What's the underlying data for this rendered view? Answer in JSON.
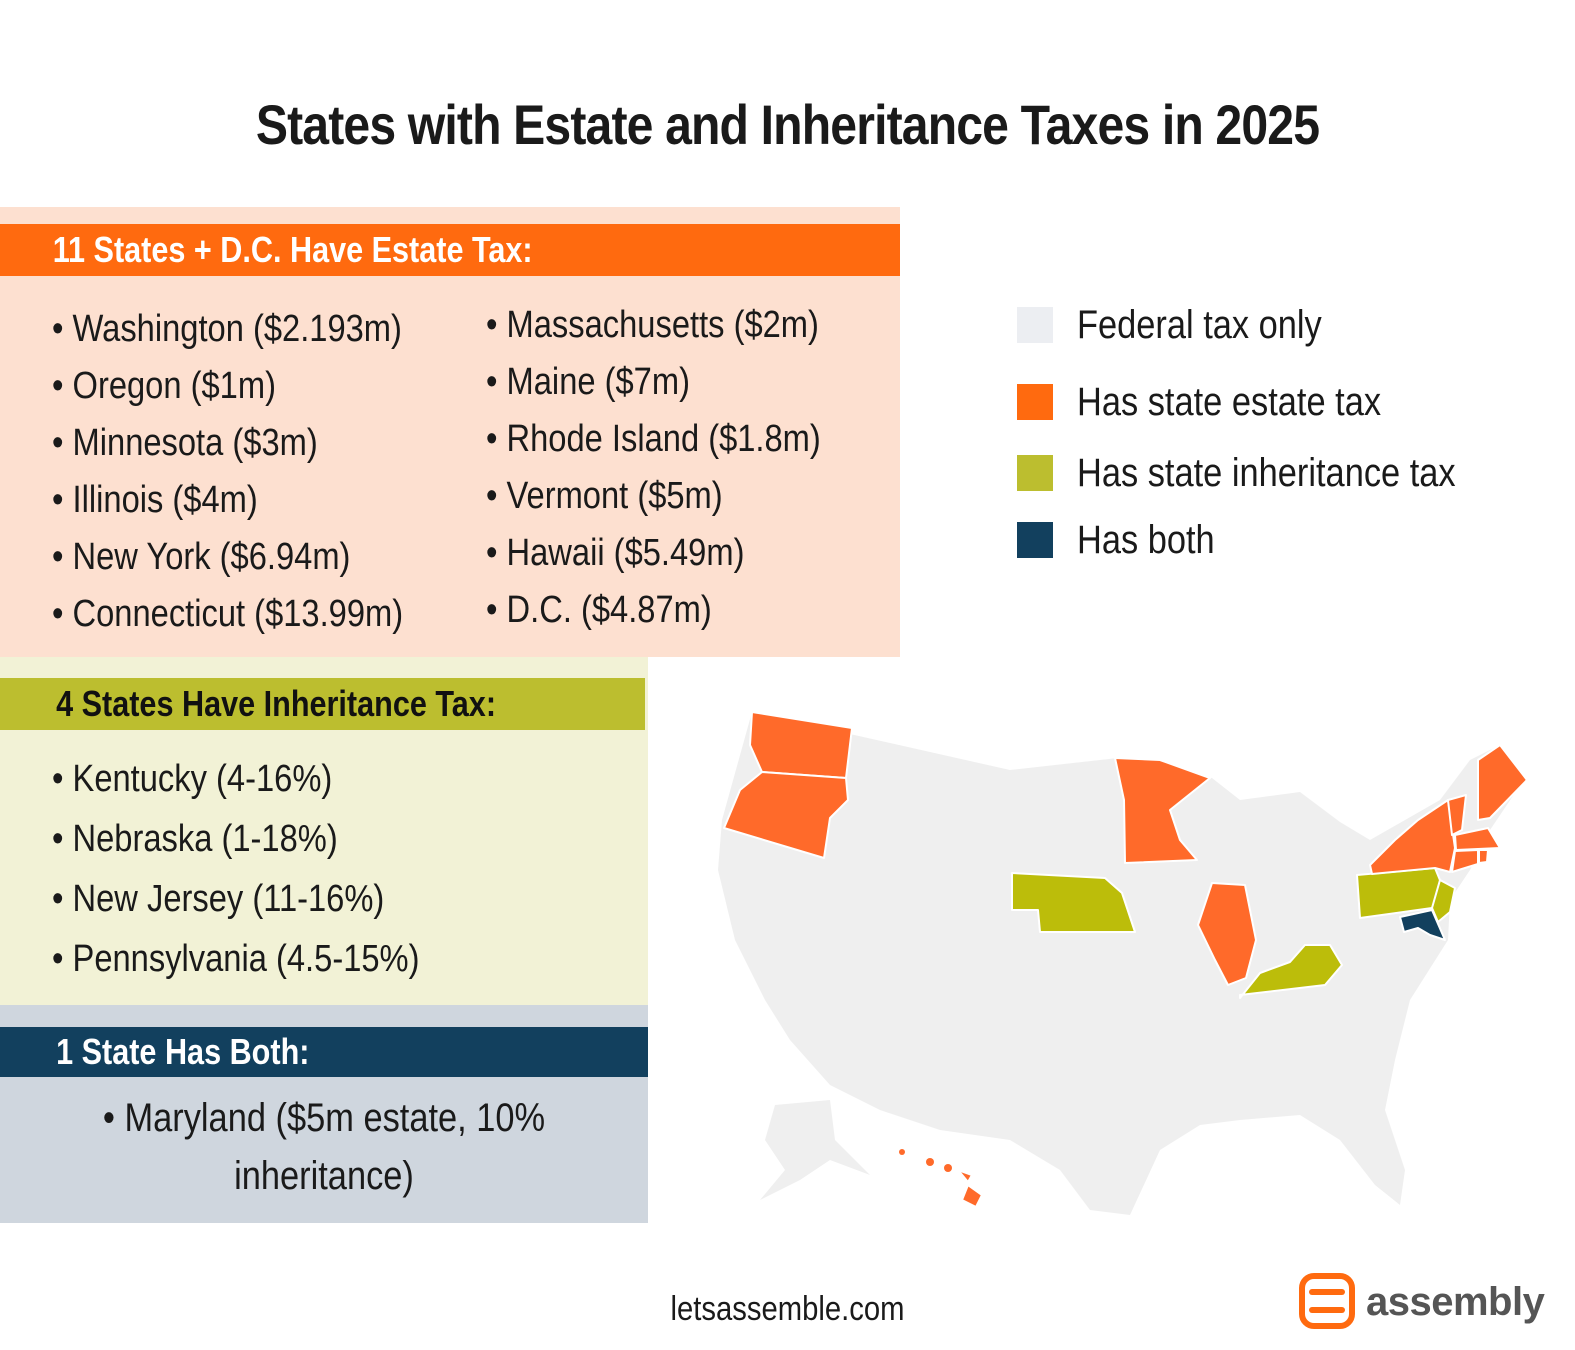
{
  "title": "States with Estate and Inheritance Taxes in 2025",
  "estate": {
    "heading": "11 States + D.C. Have Estate Tax:",
    "column1": [
      "Washington ($2.193m)",
      "Oregon ($1m)",
      "Minnesota ($3m)",
      "Illinois ($4m)",
      "New York ($6.94m)",
      "Connecticut ($13.99m)"
    ],
    "column2": [
      "Massachusetts ($2m)",
      "Maine ($7m)",
      "Rhode Island ($1.8m)",
      "Vermont ($5m)",
      "Hawaii ($5.49m)",
      "D.C. ($4.87m)"
    ]
  },
  "inheritance": {
    "heading": "4 States Have Inheritance Tax:",
    "items": [
      "Kentucky (4-16%)",
      "Nebraska (1-18%)",
      "New Jersey (11-16%)",
      "Pennsylvania (4.5-15%)"
    ]
  },
  "both": {
    "heading": "1 State Has Both:",
    "line1": "• Maryland ($5m estate, 10%",
    "line2": "inheritance)"
  },
  "legend": [
    {
      "label": "Federal tax only",
      "color": "#eceef2"
    },
    {
      "label": "Has state estate tax",
      "color": "#ff6a0f"
    },
    {
      "label": "Has state inheritance tax",
      "color": "#bcbe2f"
    },
    {
      "label": "Has both",
      "color": "#12405e"
    }
  ],
  "map_colors": {
    "federal_only": "#efefef",
    "estate": "#ff6a2a",
    "inheritance": "#bcbd0a",
    "both": "#12405e"
  },
  "footer": {
    "url": "letsassemble.com",
    "brand": "assembly",
    "brand_color": "#ff6a0f"
  }
}
